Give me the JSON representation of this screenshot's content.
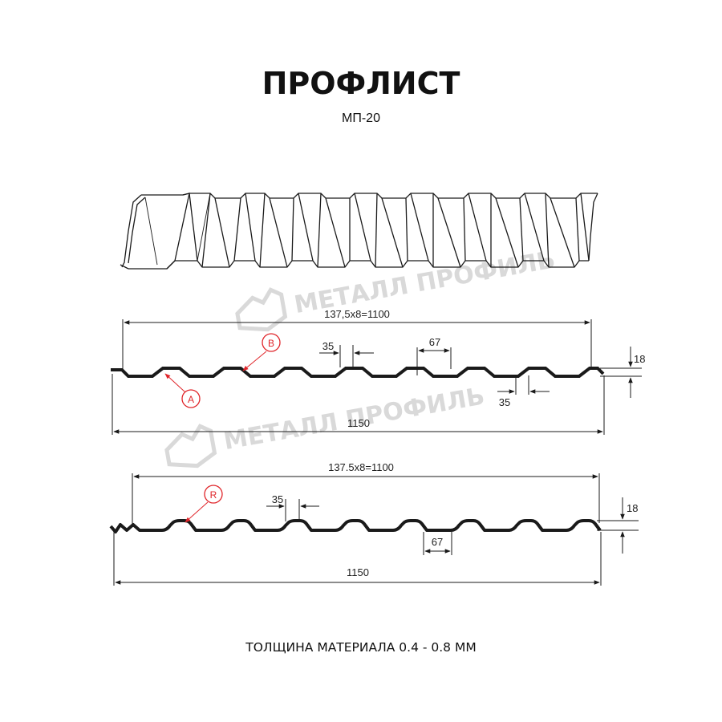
{
  "header": {
    "title": "ПРОФЛИСТ",
    "subtitle": "МП-20"
  },
  "watermark": {
    "brand": "МЕТАЛЛ ПРОФИЛЬ"
  },
  "profile_a": {
    "top_span": "137,5x8=1100",
    "total_width": "1150",
    "height": "18",
    "rib_width": "67",
    "shelf_top": "35",
    "shelf_bottom": "35",
    "callout_a": "A",
    "callout_b": "B"
  },
  "profile_r": {
    "top_span": "137.5x8=1100",
    "total_width": "1150",
    "height": "18",
    "rib_width": "67",
    "shelf_top": "35",
    "callout_r": "R"
  },
  "footer": {
    "thickness": "ТОЛЩИНА МАТЕРИАЛА 0.4 - 0.8 ММ"
  },
  "colors": {
    "line": "#1a1a1a",
    "accent": "#e0252a",
    "watermark": "#d9d9d9"
  }
}
